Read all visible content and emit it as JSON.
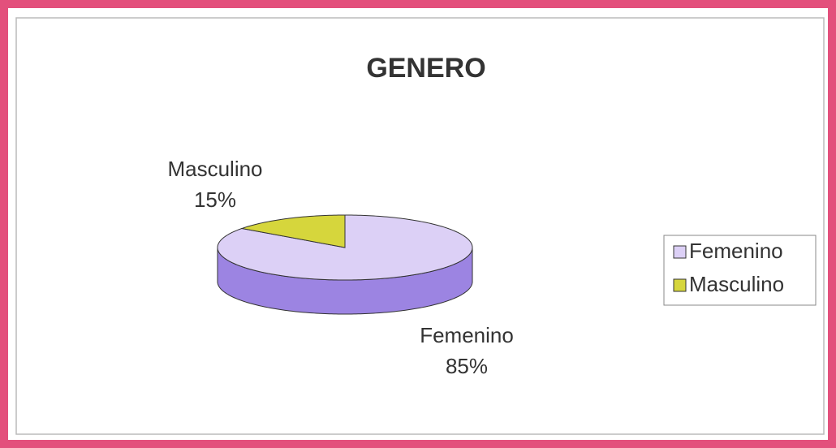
{
  "chart_data": {
    "type": "pie",
    "title": "GENERO",
    "categories": [
      "Femenino",
      "Masculino"
    ],
    "values": [
      85,
      15
    ],
    "value_labels": [
      "85%",
      "15%"
    ],
    "colors": [
      "#dcd0f6",
      "#d6d63c"
    ],
    "side_colors": [
      "#9c84e2",
      "#9a9a22"
    ],
    "legend": "right"
  }
}
